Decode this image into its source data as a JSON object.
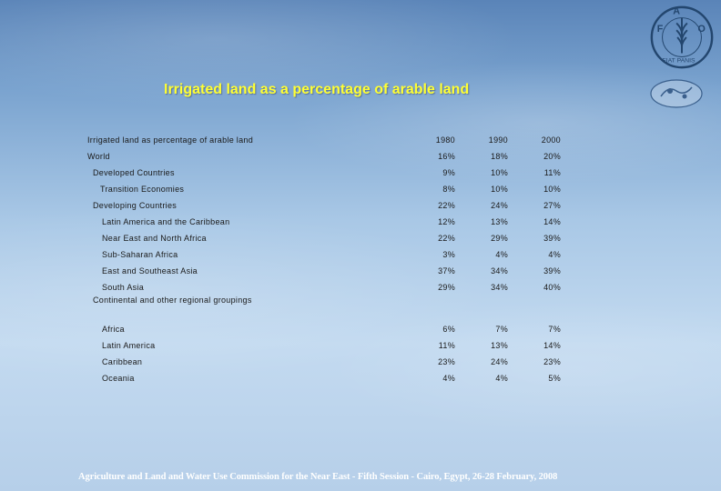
{
  "slide": {
    "title": "Irrigated land as a percentage of arable land",
    "footer": "Agriculture and Land and Water Use Commission for the Near East - Fifth Session - Cairo, Egypt,  26-28 February, 2008"
  },
  "logos": {
    "main": {
      "icon": "fao-logo-icon",
      "text": "FIAT PANIS"
    },
    "secondary": {
      "icon": "emblem-icon"
    }
  },
  "table": {
    "header": {
      "label": "Irrigated land as percentage of arable land",
      "col1": "1980",
      "col2": "1990",
      "col3": "2000"
    },
    "rows": [
      {
        "label": "World",
        "v1980": "16%",
        "v1990": "18%",
        "v2000": "20%"
      },
      {
        "label": "Developed Countries",
        "v1980": "9%",
        "v1990": "10%",
        "v2000": "11%"
      },
      {
        "label": "Transition Economies",
        "v1980": "8%",
        "v1990": "10%",
        "v2000": "10%"
      },
      {
        "label": "Developing Countries",
        "v1980": "22%",
        "v1990": "24%",
        "v2000": "27%"
      },
      {
        "label": "Latin America and the Caribbean",
        "v1980": "12%",
        "v1990": "13%",
        "v2000": "14%"
      },
      {
        "label": "Near East and North Africa",
        "v1980": "22%",
        "v1990": "29%",
        "v2000": "39%"
      },
      {
        "label": "Sub-Saharan Africa",
        "v1980": "3%",
        "v1990": "4%",
        "v2000": "4%"
      },
      {
        "label": "East and Southeast Asia",
        "v1980": "37%",
        "v1990": "34%",
        "v2000": "39%"
      },
      {
        "label": "South Asia",
        "v1980": "29%",
        "v1990": "34%",
        "v2000": "40%"
      }
    ],
    "section_label": "Continental and other regional  groupings",
    "regional_rows": [
      {
        "label": "Africa",
        "v1980": "6%",
        "v1990": "7%",
        "v2000": "7%"
      },
      {
        "label": "Latin America",
        "v1980": "11%",
        "v1990": "13%",
        "v2000": "14%"
      },
      {
        "label": "Caribbean",
        "v1980": "23%",
        "v1990": "24%",
        "v2000": "23%"
      },
      {
        "label": "Oceania",
        "v1980": "4%",
        "v1990": "4%",
        "v2000": "5%"
      }
    ]
  }
}
